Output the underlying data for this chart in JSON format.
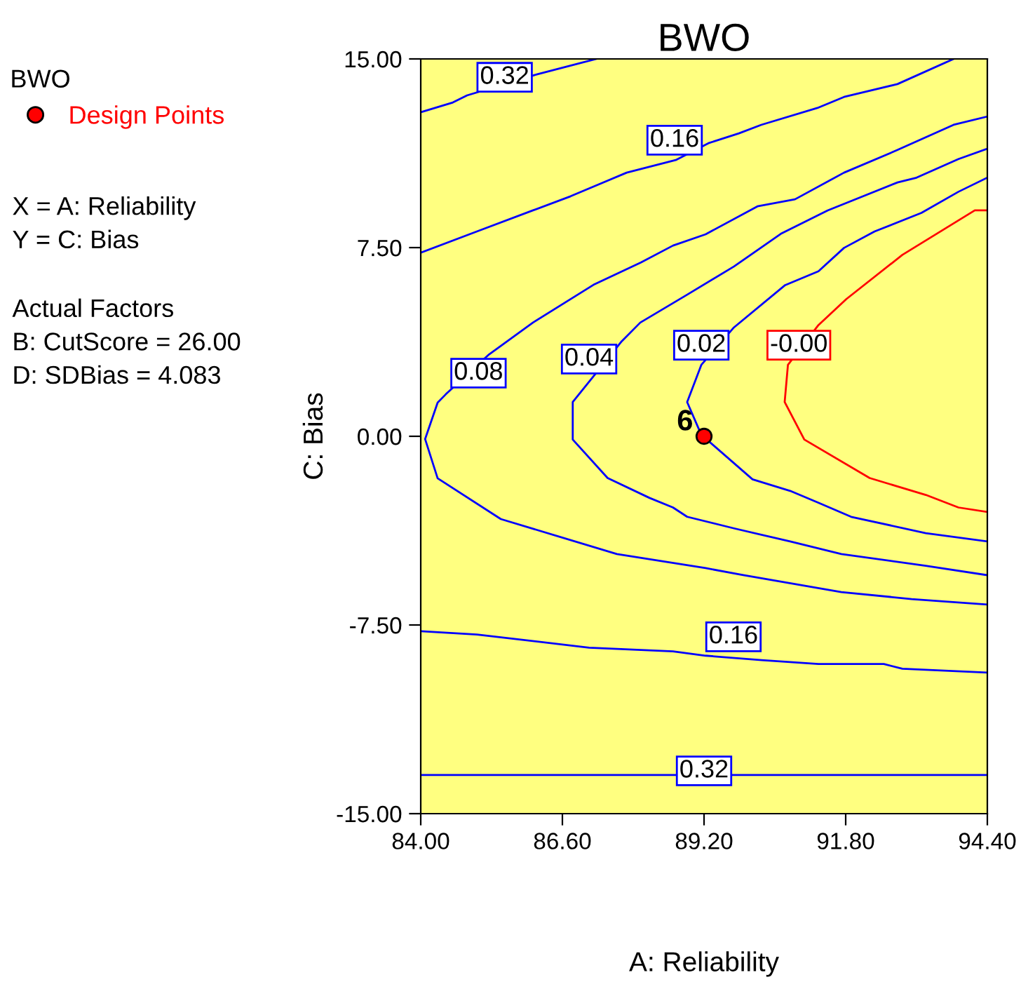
{
  "chart_data": {
    "type": "line",
    "title": "BWO",
    "xlabel": "A: Reliability",
    "ylabel": "C: Bias",
    "legend_title": "BWO",
    "legend": "top left",
    "grid": false,
    "marker": "none",
    "line_style": "solid",
    "xlim": [
      84.0,
      94.4
    ],
    "ylim": [
      -15.0,
      15.0
    ],
    "xticks": [
      {
        "value": 84.0,
        "label": "84.00"
      },
      {
        "value": 86.6,
        "label": "86.60"
      },
      {
        "value": 89.2,
        "label": "89.20"
      },
      {
        "value": 91.8,
        "label": "91.80"
      },
      {
        "value": 94.4,
        "label": "94.40"
      }
    ],
    "yticks": [
      {
        "value": -15.0,
        "label": "-15.00"
      },
      {
        "value": -7.5,
        "label": "-7.50"
      },
      {
        "value": 0.0,
        "label": "0.00"
      },
      {
        "value": 7.5,
        "label": "7.50"
      },
      {
        "value": 15.0,
        "label": "15.00"
      }
    ],
    "series": [
      {
        "color": "#0000ff",
        "x": [
          84.0,
          84.59,
          84.85,
          86.14,
          87.22
        ],
        "values": [
          12.88,
          13.27,
          13.55,
          14.39,
          15.0
        ]
      },
      {
        "color": "#0000ff",
        "x": [
          84.0,
          85.03,
          86.06,
          86.75,
          87.78,
          88.68,
          89.28,
          89.84,
          90.25,
          91.28,
          91.77,
          92.75,
          93.78
        ],
        "values": [
          7.3,
          8.14,
          8.98,
          9.54,
          10.48,
          10.98,
          11.65,
          12.04,
          12.38,
          13.05,
          13.49,
          14.0,
          15.0
        ]
      },
      {
        "color": "#0000ff",
        "x": [
          94.4,
          93.78,
          92.75,
          91.77,
          90.87,
          90.18,
          89.23,
          88.63,
          88.04,
          87.17,
          86.06,
          85.24,
          84.46,
          84.31,
          84.08,
          84.31,
          85.47,
          87.6,
          89.23,
          89.92,
          91.72,
          93.01,
          94.4
        ],
        "values": [
          12.71,
          12.38,
          11.38,
          10.48,
          9.42,
          9.14,
          8.03,
          7.58,
          6.91,
          6.02,
          4.52,
          3.23,
          1.67,
          1.34,
          -0.11,
          -1.67,
          -3.29,
          -4.68,
          -5.24,
          -5.52,
          -6.19,
          -6.47,
          -6.69
        ]
      },
      {
        "color": "#0000ff",
        "x": [
          94.4,
          93.87,
          93.1,
          92.75,
          91.47,
          90.61,
          89.75,
          88.89,
          88.03,
          87.69,
          86.79,
          86.79,
          87.43,
          88.2,
          88.63,
          88.89,
          89.75,
          90.78,
          91.72,
          93.27,
          94.4
        ],
        "values": [
          11.43,
          11.02,
          10.28,
          10.09,
          8.98,
          8.05,
          6.75,
          5.63,
          4.52,
          3.78,
          1.36,
          -0.13,
          -1.66,
          -2.45,
          -2.83,
          -3.2,
          -3.66,
          -4.18,
          -4.68,
          -5.15,
          -5.52
        ]
      },
      {
        "color": "#0000ff",
        "x": [
          94.4,
          93.87,
          93.19,
          92.33,
          91.77,
          91.3,
          90.69,
          89.75,
          89.15,
          88.89,
          89.15,
          90.09,
          90.78,
          91.3,
          91.9,
          93.27,
          94.4
        ],
        "values": [
          10.28,
          9.72,
          8.88,
          8.14,
          7.49,
          6.56,
          6.01,
          4.33,
          2.84,
          1.36,
          0.06,
          -1.71,
          -2.17,
          -2.64,
          -3.2,
          -3.85,
          -4.18
        ]
      },
      {
        "color": "#ff0000",
        "x": [
          94.4,
          94.17,
          92.84,
          91.81,
          91.3,
          90.74,
          90.68,
          91.04,
          92.24,
          93.27,
          93.87,
          94.4
        ],
        "values": [
          8.98,
          8.98,
          7.21,
          5.45,
          4.42,
          2.84,
          1.36,
          -0.13,
          -1.66,
          -2.33,
          -2.83,
          -3.01
        ]
      },
      {
        "color": "#0000ff",
        "x": [
          84.0,
          85.03,
          87.09,
          88.63,
          89.23,
          90.26,
          91.3,
          92.5,
          92.84,
          94.4
        ],
        "values": [
          -7.75,
          -7.88,
          -8.4,
          -8.55,
          -8.72,
          -8.9,
          -9.05,
          -9.05,
          -9.24,
          -9.39
        ]
      },
      {
        "color": "#0000ff",
        "x": [
          84.0,
          94.4
        ],
        "values": [
          -13.46,
          -13.46
        ]
      },
      {
        "type": "scatter",
        "name": "Design Points",
        "color": "#ff0000",
        "marker": "circle",
        "x": [
          89.2
        ],
        "values": [
          0.0
        ]
      }
    ],
    "annotations": [
      "X = A: Reliability",
      "Y = C: Bias",
      "Actual Factors",
      "B: CutScore = 26.00",
      "D: SDBias = 4.083",
      {
        "text": "0.32",
        "x": 85.54,
        "y": 14.27
      },
      {
        "text": "0.16",
        "x": 88.66,
        "y": 11.77
      },
      {
        "text": "0.08",
        "x": 85.06,
        "y": 2.51
      },
      {
        "text": "0.04",
        "x": 87.09,
        "y": 3.07
      },
      {
        "text": "0.02",
        "x": 89.15,
        "y": 3.62
      },
      {
        "text": "-0.00",
        "x": 90.94,
        "y": 3.62
      },
      {
        "text": "0.16",
        "x": 89.74,
        "y": -7.97
      },
      {
        "text": "0.32",
        "x": 89.2,
        "y": -13.3
      },
      {
        "text": "6",
        "x": 89.2,
        "y": 0.0
      }
    ]
  }
}
